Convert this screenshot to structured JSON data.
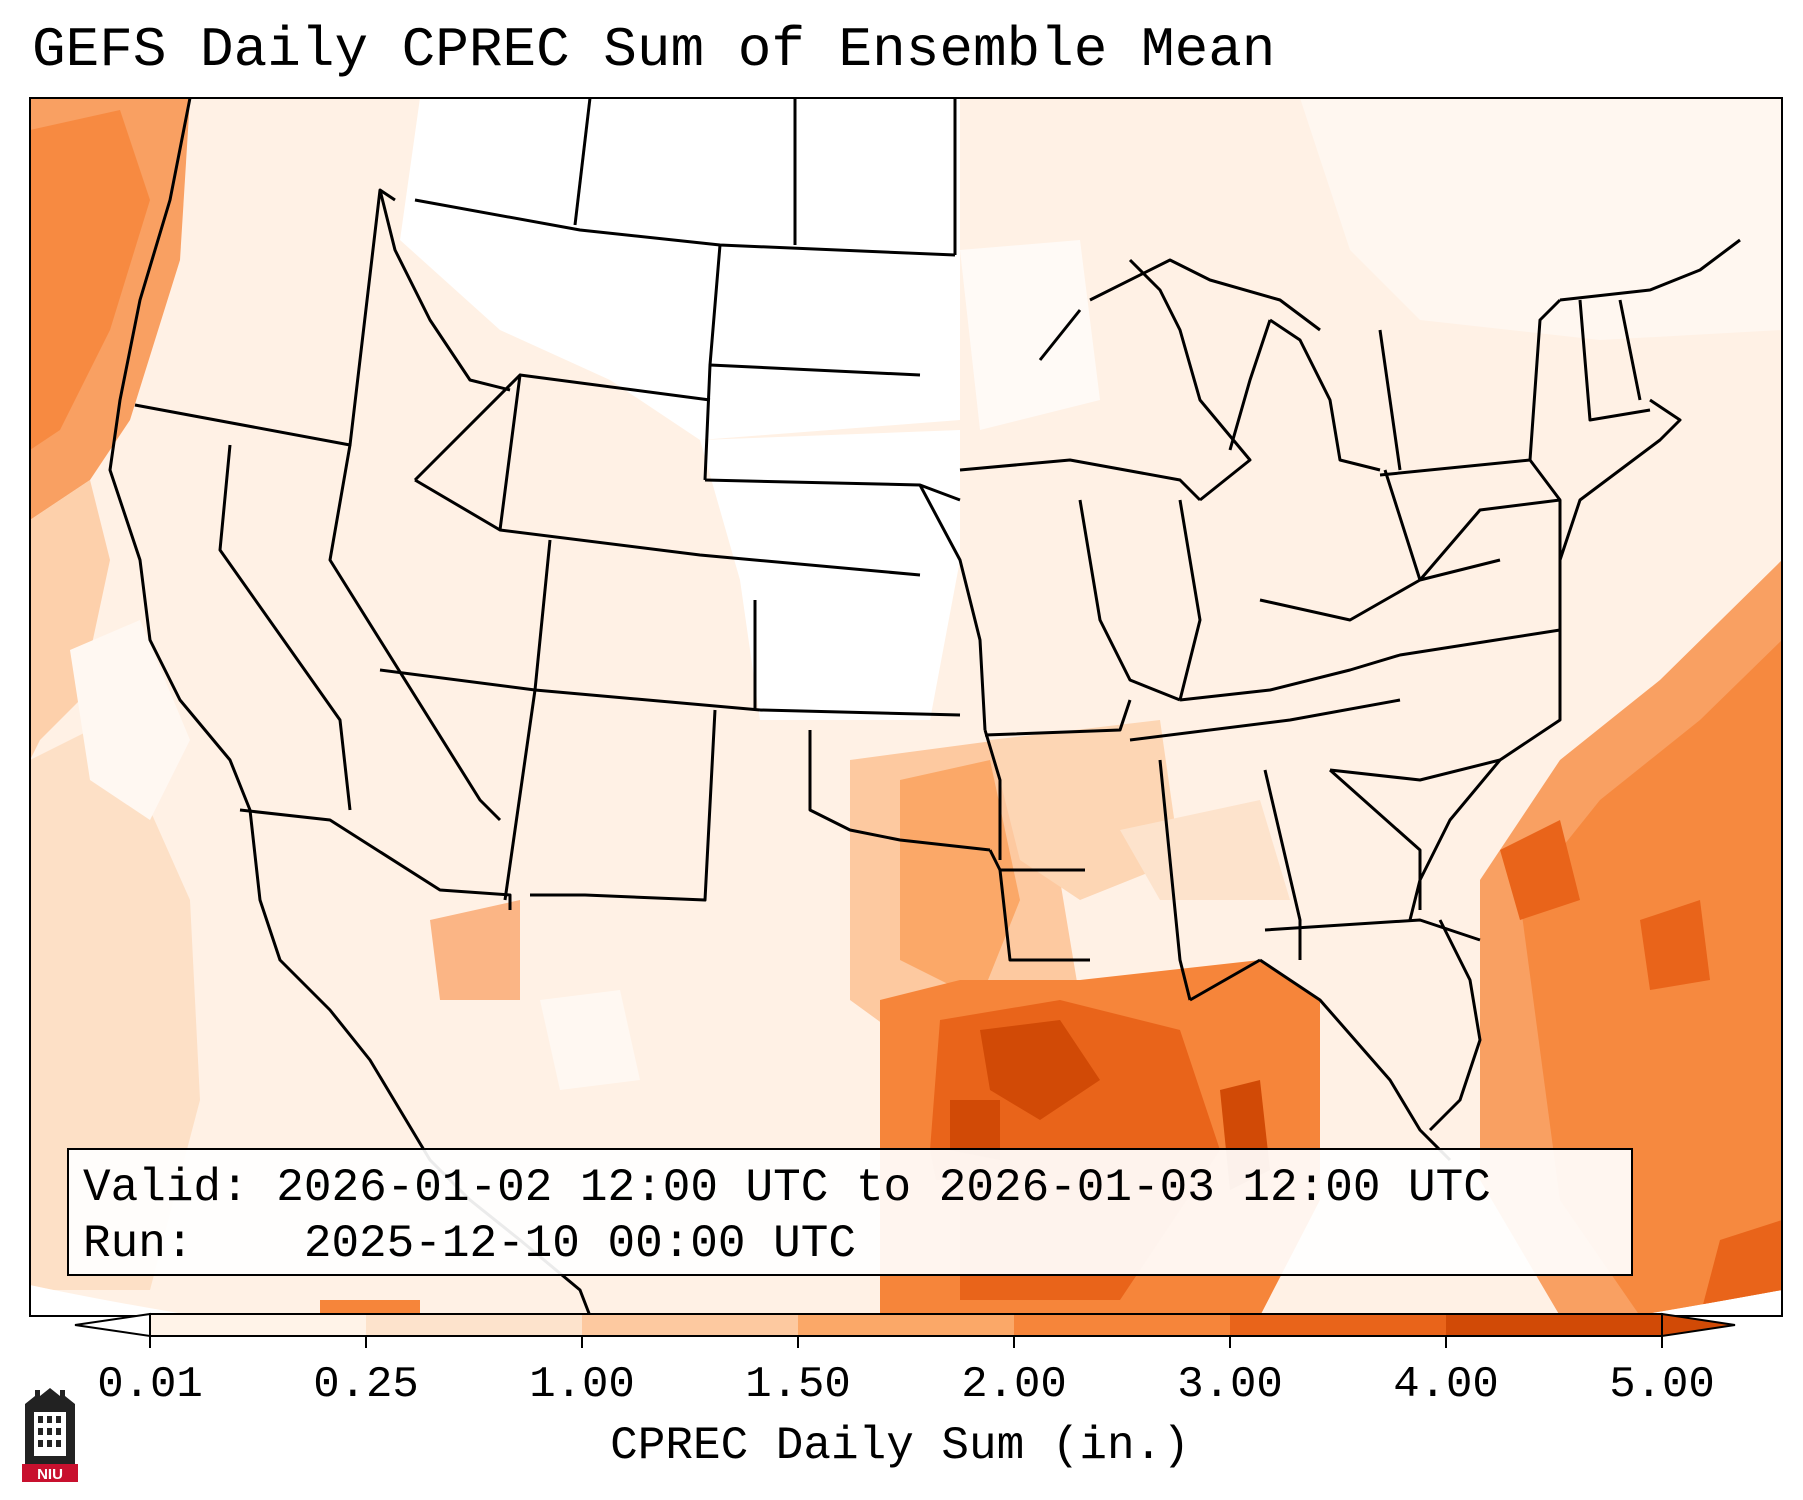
{
  "title": "GEFS Daily CPREC Sum of Ensemble Mean",
  "info": {
    "valid_label": "Valid:",
    "valid_value": "2026-01-02 12:00 UTC to 2026-01-03 12:00 UTC",
    "run_label": "Run:",
    "run_value": "2025-12-10 00:00 UTC"
  },
  "colorbar": {
    "title": "CPREC Daily Sum (in.)",
    "ticks": [
      "0.01",
      "0.25",
      "1.00",
      "1.50",
      "2.00",
      "3.00",
      "4.00",
      "5.00"
    ],
    "colors": [
      "#fff3e8",
      "#fde3cc",
      "#fdc9a0",
      "#fba868",
      "#f6853a",
      "#e9641a",
      "#d14a06"
    ]
  },
  "logo": {
    "text": "NIU"
  }
}
